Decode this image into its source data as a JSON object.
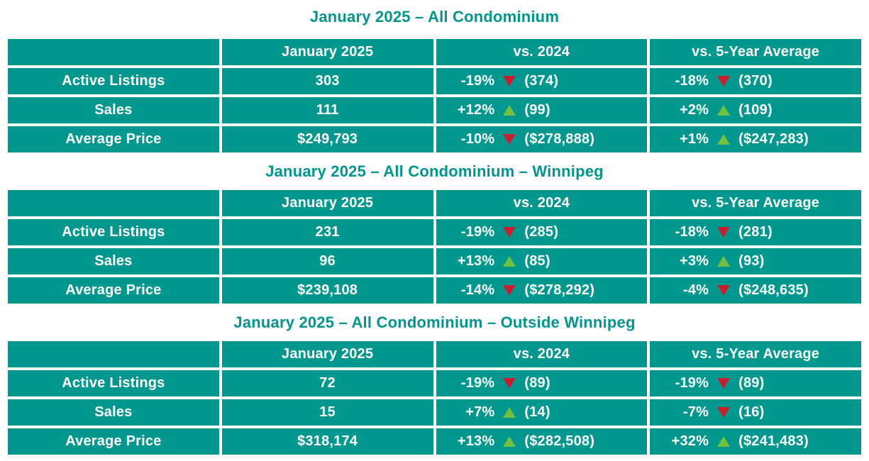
{
  "colors": {
    "table_background": "#00978E",
    "title_text": "#00948C",
    "down_triangle": "#C62030",
    "up_triangle": "#6FC13F",
    "cell_text": "#FFFFFF",
    "page_background": "#FFFFFF"
  },
  "columns": [
    "",
    "January 2025",
    "vs. 2024",
    "vs. 5-Year Average"
  ],
  "tables": [
    {
      "title": "January 2025 – All Condominium",
      "rows": [
        {
          "label": "Active Listings",
          "current": "303",
          "vs2024": {
            "pct": "-19%",
            "dir": "down",
            "ref": "(374)"
          },
          "vs5yr": {
            "pct": "-18%",
            "dir": "down",
            "ref": "(370)"
          }
        },
        {
          "label": "Sales",
          "current": "111",
          "vs2024": {
            "pct": "+12%",
            "dir": "up",
            "ref": "(99)"
          },
          "vs5yr": {
            "pct": "+2%",
            "dir": "up",
            "ref": "(109)"
          }
        },
        {
          "label": "Average Price",
          "current": "$249,793",
          "vs2024": {
            "pct": "-10%",
            "dir": "down",
            "ref": "($278,888)"
          },
          "vs5yr": {
            "pct": "+1%",
            "dir": "up",
            "ref": "($247,283)"
          }
        }
      ]
    },
    {
      "title": "January 2025 – All Condominium – Winnipeg",
      "rows": [
        {
          "label": "Active Listings",
          "current": "231",
          "vs2024": {
            "pct": "-19%",
            "dir": "down",
            "ref": "(285)"
          },
          "vs5yr": {
            "pct": "-18%",
            "dir": "down",
            "ref": "(281)"
          }
        },
        {
          "label": "Sales",
          "current": "96",
          "vs2024": {
            "pct": "+13%",
            "dir": "up",
            "ref": "(85)"
          },
          "vs5yr": {
            "pct": "+3%",
            "dir": "up",
            "ref": "(93)"
          }
        },
        {
          "label": "Average Price",
          "current": "$239,108",
          "vs2024": {
            "pct": "-14%",
            "dir": "down",
            "ref": "($278,292)"
          },
          "vs5yr": {
            "pct": "-4%",
            "dir": "down",
            "ref": "($248,635)"
          }
        }
      ]
    },
    {
      "title": "January 2025 – All Condominium – Outside Winnipeg",
      "rows": [
        {
          "label": "Active Listings",
          "current": "72",
          "vs2024": {
            "pct": "-19%",
            "dir": "down",
            "ref": "(89)"
          },
          "vs5yr": {
            "pct": "-19%",
            "dir": "down",
            "ref": "(89)"
          }
        },
        {
          "label": "Sales",
          "current": "15",
          "vs2024": {
            "pct": "+7%",
            "dir": "up",
            "ref": "(14)"
          },
          "vs5yr": {
            "pct": "-7%",
            "dir": "down",
            "ref": "(16)"
          }
        },
        {
          "label": "Average Price",
          "current": "$318,174",
          "vs2024": {
            "pct": "+13%",
            "dir": "up",
            "ref": "($282,508)"
          },
          "vs5yr": {
            "pct": "+32%",
            "dir": "up",
            "ref": "($241,483)"
          }
        }
      ]
    }
  ]
}
